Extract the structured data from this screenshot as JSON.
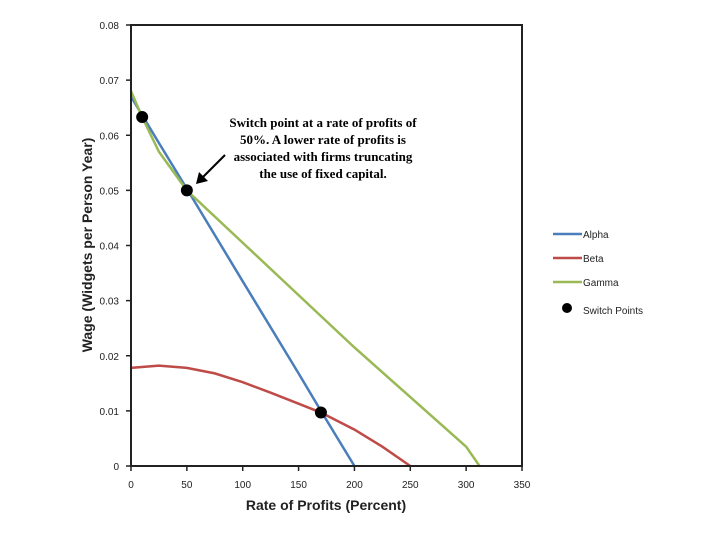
{
  "chart_data": {
    "type": "line",
    "xlabel": "Rate of Profits (Percent)",
    "ylabel": "Wage (Widgets per Person Year)",
    "xlim": [
      0,
      350
    ],
    "ylim": [
      0,
      0.08
    ],
    "xticks": [
      "0",
      "50",
      "100",
      "150",
      "200",
      "250",
      "300",
      "350"
    ],
    "yticks": [
      "0",
      "0.01",
      "0.02",
      "0.03",
      "0.04",
      "0.05",
      "0.06",
      "0.07",
      "0.08"
    ],
    "grid": false,
    "legend_position": "right",
    "series": [
      {
        "name": "Alpha",
        "color": "#4a7ebb",
        "x": [
          0,
          25,
          50,
          100,
          150,
          170,
          200
        ],
        "y": [
          0.067,
          0.0586,
          0.0503,
          0.0335,
          0.0168,
          0.01,
          0
        ]
      },
      {
        "name": "Beta",
        "color": "#be4b48",
        "x": [
          0,
          25,
          50,
          75,
          100,
          125,
          150,
          170,
          200,
          225,
          250
        ],
        "y": [
          0.0178,
          0.0182,
          0.0178,
          0.0168,
          0.0152,
          0.0133,
          0.0113,
          0.0097,
          0.0066,
          0.0035,
          0
        ]
      },
      {
        "name": "Gamma",
        "color": "#98b954",
        "x": [
          0,
          10,
          25,
          50,
          100,
          150,
          200,
          250,
          300,
          312
        ],
        "y": [
          0.068,
          0.0633,
          0.057,
          0.05,
          0.0405,
          0.031,
          0.0215,
          0.0125,
          0.0035,
          0
        ]
      }
    ],
    "switch_points": {
      "name": "Switch Points",
      "color": "#000000",
      "x": [
        10,
        50,
        170
      ],
      "y": [
        0.0633,
        0.05,
        0.0097
      ]
    },
    "annotation": {
      "lines": [
        "Switch point at a rate of profits of",
        "50%. A lower rate of profits is",
        "associated with firms truncating",
        "the use of fixed capital."
      ],
      "points_to": {
        "x": 50,
        "y": 0.05
      }
    }
  }
}
